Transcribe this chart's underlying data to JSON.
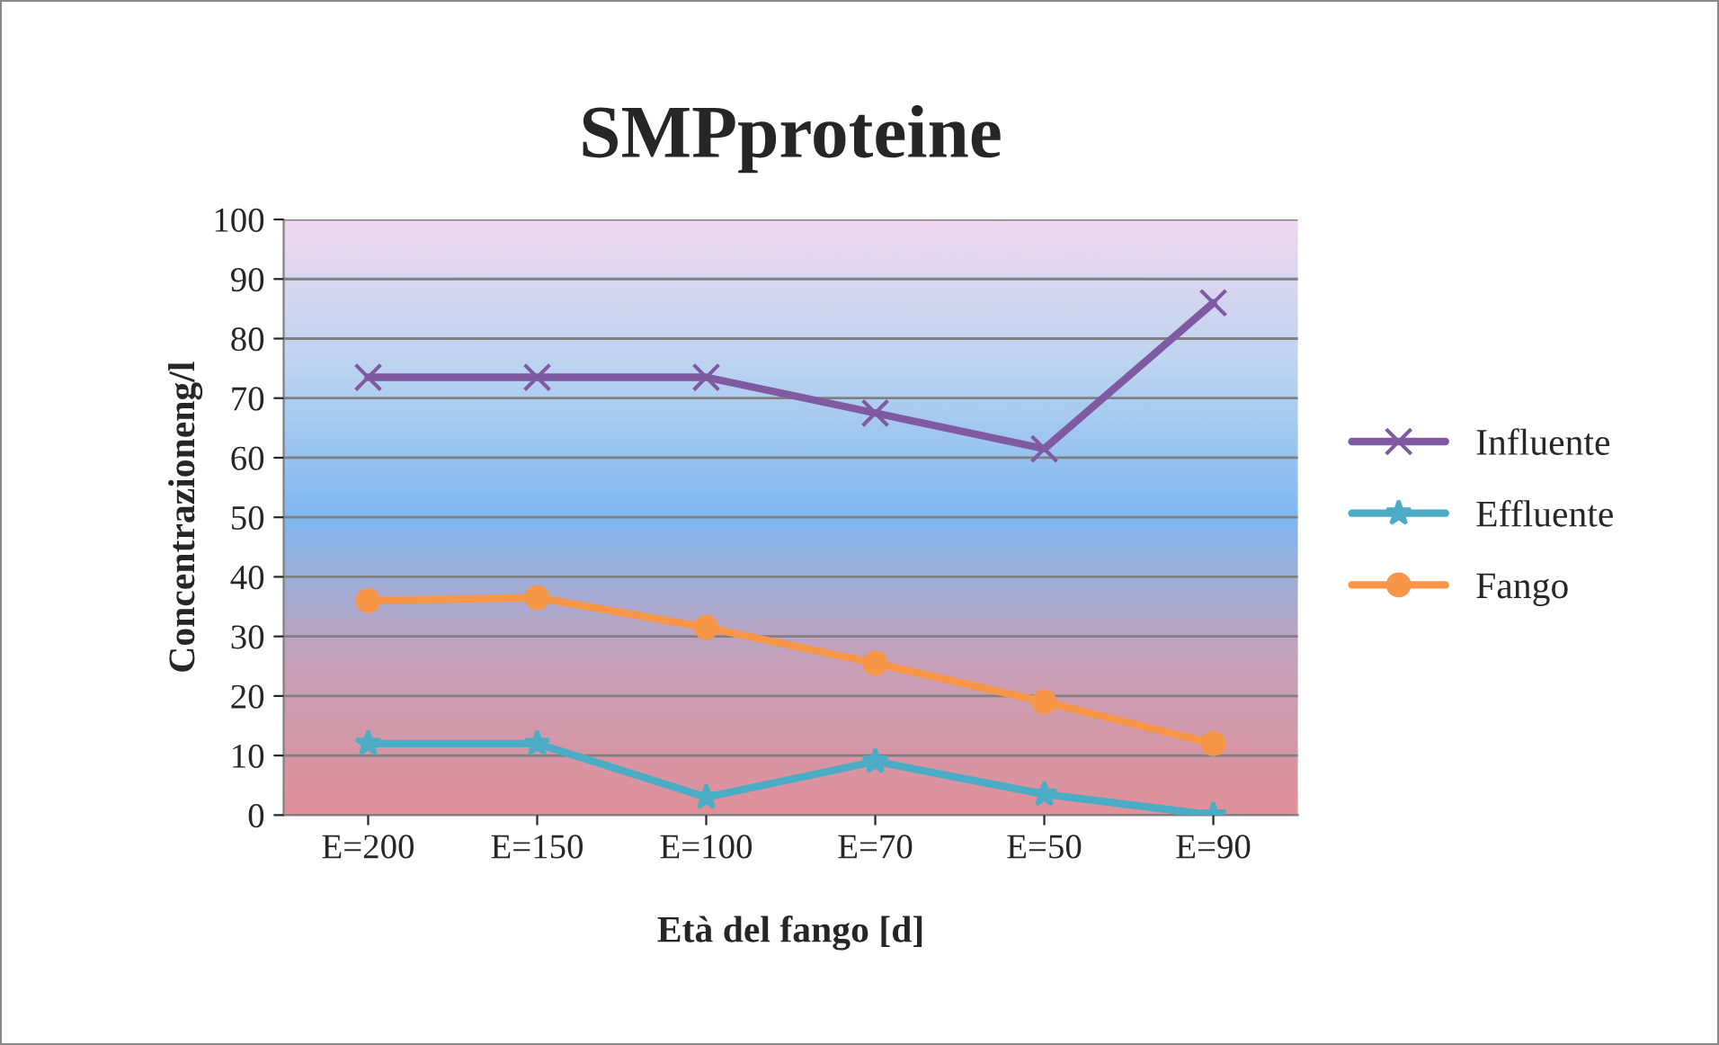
{
  "chart_data": {
    "type": "line",
    "title": "SMPproteine",
    "xlabel": "Età del fango [d]",
    "ylabel": "Concentrazioneng/l",
    "categories": [
      "E=200",
      "E=150",
      "E=100",
      "E=70",
      "E=50",
      "E=90"
    ],
    "series": [
      {
        "name": "Influente",
        "color": "#7f5aa2",
        "marker": "cross",
        "values": [
          73.5,
          73.5,
          73.5,
          67.5,
          61.5,
          86
        ]
      },
      {
        "name": "Effluente",
        "color": "#4bacc6",
        "marker": "star",
        "values": [
          12,
          12,
          3,
          9,
          3.5,
          0
        ]
      },
      {
        "name": "Fango",
        "color": "#f79646",
        "marker": "circle",
        "values": [
          36,
          36.5,
          31.5,
          25.5,
          19,
          12
        ]
      }
    ],
    "ylim": [
      0,
      100
    ],
    "yticks": [
      0,
      10,
      20,
      30,
      40,
      50,
      60,
      70,
      80,
      90,
      100
    ],
    "grid": "y",
    "legend": "right",
    "line_style": "solid"
  }
}
